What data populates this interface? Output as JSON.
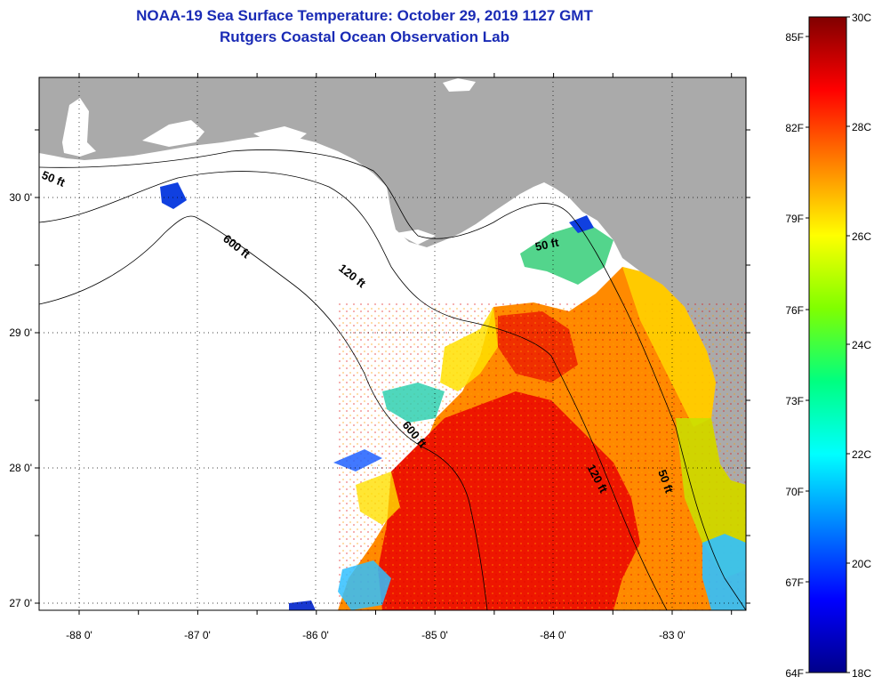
{
  "title": {
    "line1": "NOAA-19 Sea Surface Temperature:  October 29, 2019 1127 GMT",
    "line2": "Rutgers Coastal Ocean Observation Lab"
  },
  "map": {
    "x_ticks": [
      "-88 0'",
      "-87 0'",
      "-86 0'",
      "-85 0'",
      "-84 0'",
      "-83 0'"
    ],
    "y_ticks": [
      "30 0'",
      "29 0'",
      "28 0'",
      "27 0'"
    ],
    "contour_labels": [
      "50 ft",
      "600 ft",
      "120 ft",
      "50 ft",
      "600 ft",
      "120 ft",
      "50 ft"
    ],
    "colors": {
      "land": "#aaaaaa",
      "no_data": "#ffffff",
      "frame": "#000000"
    }
  },
  "colorbar": {
    "f_labels": [
      "85F",
      "82F",
      "79F",
      "76F",
      "73F",
      "70F",
      "67F",
      "64F"
    ],
    "c_labels": [
      "30C",
      "28C",
      "26C",
      "24C",
      "22C",
      "20C",
      "18C"
    ],
    "colors": [
      "#00008a",
      "#0000ff",
      "#0080ff",
      "#00ffff",
      "#00ff80",
      "#80ff00",
      "#ffff00",
      "#ff8000",
      "#ff0000",
      "#800000"
    ]
  }
}
